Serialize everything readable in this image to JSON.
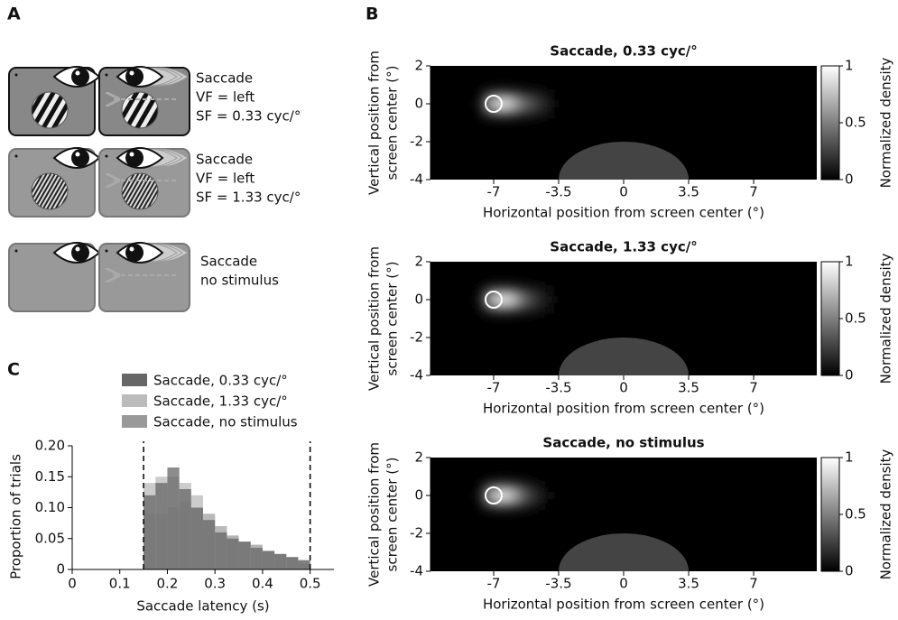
{
  "panel_labels": [
    "A",
    "B",
    "C"
  ],
  "diagram": {
    "rows": [
      {
        "lines": [
          "Saccade",
          "VF = left",
          "SF = 0.33 cyc/°"
        ]
      },
      {
        "lines": [
          "Saccade",
          "VF = left",
          "SF = 1.33 cyc/°"
        ]
      },
      {
        "lines": [
          "Saccade",
          "no stimulus"
        ]
      }
    ]
  },
  "chart_data": [
    {
      "type": "heatmap",
      "title": "Saccade, 0.33 cyc/°",
      "xlabel": "Horizontal position from screen center (°)",
      "ylabel": [
        "Vertical position from",
        "screen center (°)"
      ],
      "xlim": [
        -10.4,
        10.4
      ],
      "xticks": [
        -7,
        -3.5,
        0,
        3.5,
        7
      ],
      "ylim": [
        -4,
        2
      ],
      "yticks": [
        -4,
        -2,
        0,
        2
      ],
      "x": [
        -7.5,
        -7,
        -6.5,
        -6,
        -5.5,
        -5,
        -4.5,
        -4
      ],
      "y": [
        0.5,
        0,
        -0.5
      ],
      "values": [
        [
          0.1,
          0.3,
          0.35,
          0.3,
          0.2,
          0.15,
          0.1,
          0.05
        ],
        [
          0.3,
          0.8,
          1,
          0.8,
          0.5,
          0.35,
          0.2,
          0.1
        ],
        [
          0.1,
          0.3,
          0.35,
          0.3,
          0.2,
          0.15,
          0.1,
          0.05
        ]
      ],
      "target": {
        "x": -7,
        "y": 0
      },
      "stimulus": {
        "x": 0,
        "y": -4,
        "rx": 3.5,
        "ry": 2
      },
      "colorbar": {
        "label": "Normalized density",
        "lim": [
          0,
          1
        ],
        "ticks": [
          0,
          0.5,
          1
        ]
      }
    },
    {
      "type": "heatmap",
      "title": "Saccade, 1.33 cyc/°",
      "xlabel": "Horizontal position from screen center (°)",
      "ylabel": [
        "Vertical position from",
        "screen center (°)"
      ],
      "xlim": [
        -10.4,
        10.4
      ],
      "xticks": [
        -7,
        -3.5,
        0,
        3.5,
        7
      ],
      "ylim": [
        -4,
        2
      ],
      "yticks": [
        -4,
        -2,
        0,
        2
      ],
      "x": [
        -7.5,
        -7,
        -6.5,
        -6,
        -5.5,
        -5,
        -4.5,
        -4
      ],
      "y": [
        0.5,
        0,
        -0.5
      ],
      "values": [
        [
          0.1,
          0.3,
          0.35,
          0.3,
          0.2,
          0.15,
          0.08,
          0.04
        ],
        [
          0.3,
          0.8,
          1,
          0.85,
          0.5,
          0.3,
          0.15,
          0.08
        ],
        [
          0.1,
          0.3,
          0.35,
          0.3,
          0.2,
          0.15,
          0.08,
          0.04
        ]
      ],
      "target": {
        "x": -7,
        "y": 0
      },
      "stimulus": {
        "x": 0,
        "y": -4,
        "rx": 3.5,
        "ry": 2
      },
      "colorbar": {
        "label": "Normalized density",
        "lim": [
          0,
          1
        ],
        "ticks": [
          0,
          0.5,
          1
        ]
      }
    },
    {
      "type": "heatmap",
      "title": "Saccade, no stimulus",
      "xlabel": "Horizontal position from screen center (°)",
      "ylabel": [
        "Vertical position from",
        "screen center (°)"
      ],
      "xlim": [
        -10.4,
        10.4
      ],
      "xticks": [
        -7,
        -3.5,
        0,
        3.5,
        7
      ],
      "ylim": [
        -4,
        2
      ],
      "yticks": [
        -4,
        -2,
        0,
        2
      ],
      "x": [
        -7.5,
        -7,
        -6.5,
        -6,
        -5.5,
        -5,
        -4.5,
        -4
      ],
      "y": [
        0.5,
        0,
        -0.5
      ],
      "values": [
        [
          0.1,
          0.3,
          0.35,
          0.3,
          0.2,
          0.1,
          0.05,
          0.02
        ],
        [
          0.3,
          0.8,
          1,
          0.8,
          0.45,
          0.25,
          0.1,
          0.04
        ],
        [
          0.1,
          0.3,
          0.35,
          0.3,
          0.2,
          0.1,
          0.05,
          0.02
        ]
      ],
      "target": {
        "x": -7,
        "y": 0
      },
      "stimulus": {
        "x": 0,
        "y": -4,
        "rx": 3.5,
        "ry": 2
      },
      "colorbar": {
        "label": "Normalized density",
        "lim": [
          0,
          1
        ],
        "ticks": [
          0,
          0.5,
          1
        ]
      }
    },
    {
      "type": "histogram",
      "xlabel": "Saccade latency (s)",
      "ylabel": "Proportion of trials",
      "xlim": [
        0,
        0.55
      ],
      "xticks": [
        0,
        0.1,
        0.2,
        0.3,
        0.4,
        0.5
      ],
      "ylim": [
        0,
        0.2
      ],
      "yticks": [
        0,
        {
          "value": 0.05,
          "label": "0.05"
        },
        {
          "value": 0.1,
          "label": "0.10"
        },
        {
          "value": 0.15,
          "label": "0.15"
        },
        {
          "value": 0.2,
          "label": "0.20"
        }
      ],
      "bins": [
        0.15,
        0.175,
        0.2,
        0.225,
        0.25,
        0.275,
        0.3,
        0.325,
        0.35,
        0.375,
        0.4,
        0.425,
        0.45,
        0.475,
        0.5
      ],
      "cutoffs": [
        0.15,
        0.5
      ],
      "series": [
        {
          "name": "Saccade, 0.33 cyc/°",
          "color": "#666666",
          "values": [
            0.12,
            0.14,
            0.165,
            0.13,
            0.1,
            0.08,
            0.06,
            0.05,
            0.045,
            0.035,
            0.03,
            0.025,
            0.02,
            0.015
          ]
        },
        {
          "name": "Saccade, 1.33 cyc/°",
          "color": "#bbbbbb",
          "values": [
            0.14,
            0.15,
            0.15,
            0.14,
            0.12,
            0.09,
            0.07,
            0.05,
            0.04,
            0.035,
            0.03,
            0.025,
            0.02,
            0.015
          ]
        },
        {
          "name": "Saccade, no stimulus",
          "color": "#999999",
          "values": [
            0.09,
            0.09,
            0.1,
            0.11,
            0.1,
            0.09,
            0.07,
            0.055,
            0.045,
            0.04,
            0.03,
            0.025,
            0.02,
            0.01
          ]
        }
      ]
    }
  ]
}
